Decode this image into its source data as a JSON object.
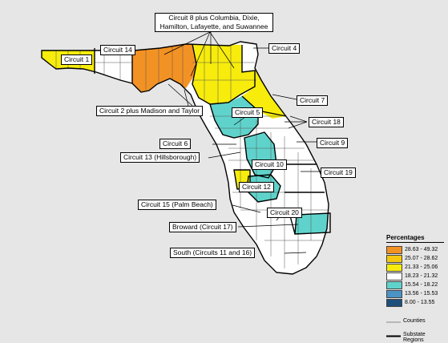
{
  "labels": {
    "circuit1": "Circuit 1",
    "circuit14": "Circuit 14",
    "circuit8": "Circuit 8 plus Columbia, Dixie, Hamilton, Lafayette, and Suwannee",
    "circuit4": "Circuit 4",
    "circuit2": "Circuit 2 plus Madison and Taylor",
    "circuit7": "Circuit 7",
    "circuit5": "Circuit 5",
    "circuit18": "Circuit 18",
    "circuit6": "Circuit 6",
    "circuit9": "Circuit 9",
    "circuit13": "Circuit 13 (Hillsborough)",
    "circuit10": "Circuit 10",
    "circuit19": "Circuit 19",
    "circuit12": "Circuit 12",
    "circuit15": "Circuit 15 (Palm Beach)",
    "circuit20": "Circuit 20",
    "broward": "Broward (Circuit 17)",
    "south": "South (Circuits 11 and 16)"
  },
  "legend": {
    "title": "Percentages",
    "classes": [
      {
        "range": "28.63 - 49.32",
        "color": "#f39224"
      },
      {
        "range": "25.07 - 28.62",
        "color": "#f6c70f"
      },
      {
        "range": "21.33 - 25.06",
        "color": "#f7ec0c"
      },
      {
        "range": "18.23 - 21.32",
        "color": "#ffffff"
      },
      {
        "range": "15.54 - 18.22",
        "color": "#5fd3cb"
      },
      {
        "range": "13.56 - 15.53",
        "color": "#4a93c4"
      },
      {
        "range": "8.00 - 13.55",
        "color": "#1d4f7a"
      }
    ],
    "counties_label": "Counties",
    "substate_label": "Substate Regions"
  }
}
